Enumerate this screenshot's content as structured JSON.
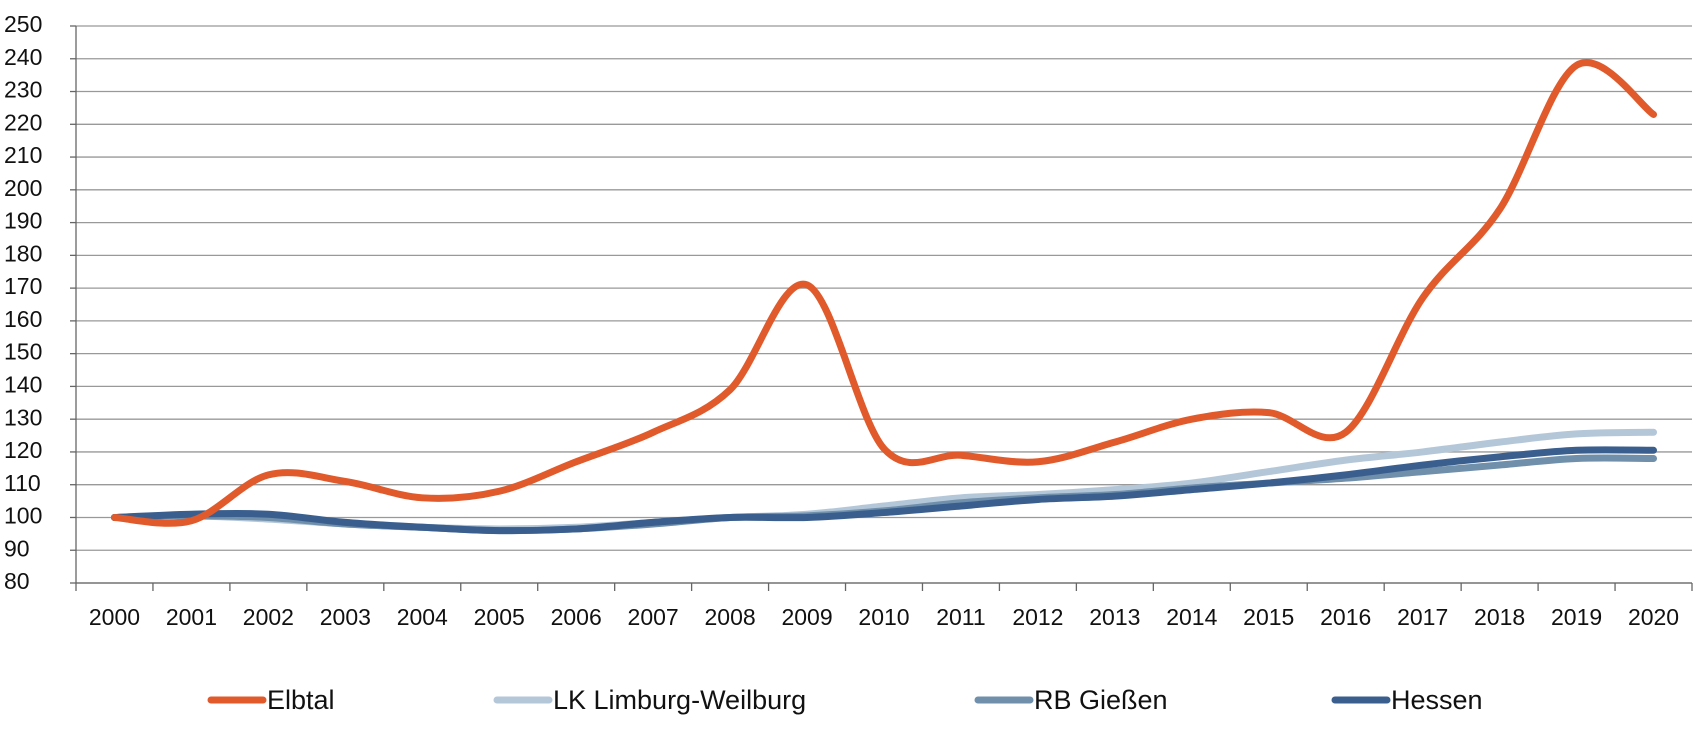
{
  "chart_data": {
    "type": "line",
    "categories": [
      "2000",
      "2001",
      "2002",
      "2003",
      "2004",
      "2005",
      "2006",
      "2007",
      "2008",
      "2009",
      "2010",
      "2011",
      "2012",
      "2013",
      "2014",
      "2015",
      "2016",
      "2017",
      "2018",
      "2019",
      "2020"
    ],
    "series": [
      {
        "name": "Elbtal",
        "color": "#e05a2b",
        "values": [
          100,
          99,
          113,
          111,
          106,
          108,
          117,
          126,
          139,
          171,
          121,
          119,
          117,
          123,
          130,
          132,
          126,
          167,
          194,
          238,
          223
        ]
      },
      {
        "name": "LK Limburg-Weilburg",
        "color": "#b4c7d9",
        "values": [
          100,
          100.5,
          99.5,
          98,
          97,
          96.5,
          97,
          98.5,
          100,
          101,
          103.5,
          106,
          107,
          108.5,
          110.5,
          114,
          117.5,
          120,
          123,
          125.5,
          126
        ]
      },
      {
        "name": "RB Gießen",
        "color": "#6f8fab",
        "values": [
          100,
          100.5,
          100,
          98,
          97,
          96,
          96.5,
          98,
          100,
          100.5,
          102,
          104.5,
          106,
          107,
          109,
          110.5,
          112,
          114,
          116,
          118,
          118
        ]
      },
      {
        "name": "Hessen",
        "color": "#3a5f8e",
        "values": [
          100,
          101,
          101,
          98.5,
          97,
          96,
          96.5,
          98.5,
          100,
          100,
          101.5,
          103.5,
          105.5,
          106.5,
          108.5,
          110.5,
          113,
          116,
          118.5,
          120.5,
          120.5
        ]
      }
    ],
    "ylim": [
      80,
      250
    ],
    "yticks": [
      80,
      90,
      100,
      110,
      120,
      130,
      140,
      150,
      160,
      170,
      180,
      190,
      200,
      210,
      220,
      230,
      240,
      250
    ],
    "grid": true
  }
}
